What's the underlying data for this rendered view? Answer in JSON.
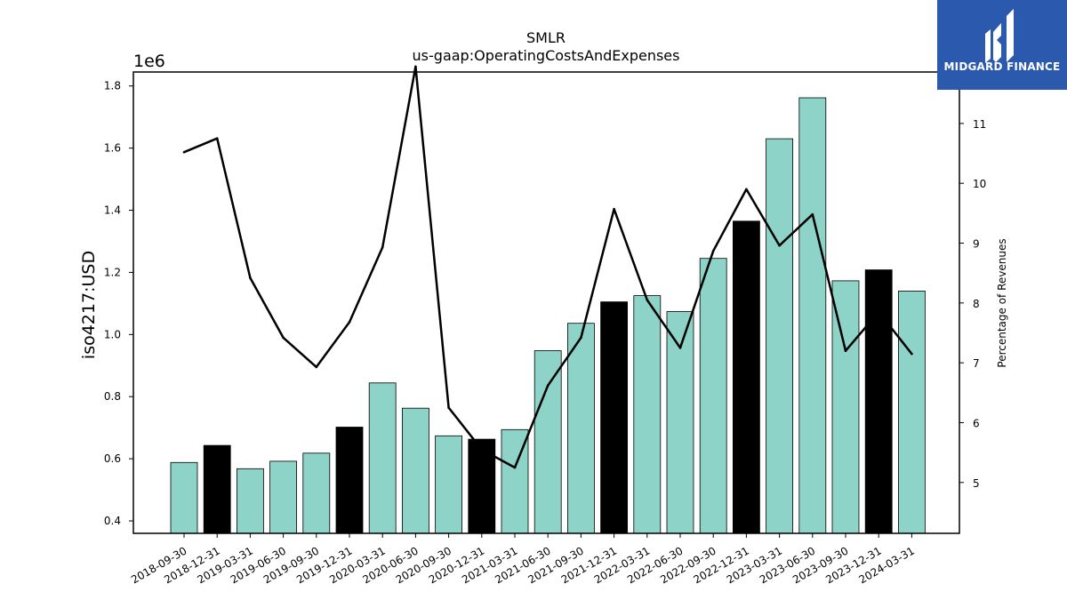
{
  "chart_data": {
    "type": "bar",
    "title": "SMLR",
    "subtitle": "us-gaap:OperatingCostsAndExpenses",
    "ylabel": "iso4217:USD",
    "y_offset_text": "1e6",
    "y2label": "Percentage of Revenues",
    "ylim": [
      0.36,
      1.845
    ],
    "y2lim": [
      4.15,
      11.86
    ],
    "yticks": [
      "0.4",
      "0.6",
      "0.8",
      "1.0",
      "1.2",
      "1.4",
      "1.6",
      "1.8"
    ],
    "y2ticks": [
      "5",
      "6",
      "7",
      "8",
      "9",
      "10",
      "11"
    ],
    "categories": [
      "2018-09-30",
      "2018-12-31",
      "2019-03-31",
      "2019-06-30",
      "2019-09-30",
      "2019-12-31",
      "2020-03-31",
      "2020-06-30",
      "2020-09-30",
      "2020-12-31",
      "2021-03-31",
      "2021-06-30",
      "2021-09-30",
      "2021-12-31",
      "2022-03-31",
      "2022-06-30",
      "2022-09-30",
      "2022-12-31",
      "2023-03-31",
      "2023-06-30",
      "2023-09-30",
      "2023-12-31",
      "2024-03-31"
    ],
    "series": [
      {
        "type": "bar",
        "axis": "left",
        "values": [
          0.588,
          0.643,
          0.568,
          0.592,
          0.618,
          0.702,
          0.844,
          0.763,
          0.674,
          0.663,
          0.694,
          0.948,
          1.036,
          1.105,
          1.125,
          1.074,
          1.245,
          1.365,
          1.63,
          1.762,
          1.173,
          1.208,
          1.14
        ],
        "quarter_end": [
          false,
          true,
          false,
          false,
          false,
          true,
          false,
          false,
          false,
          true,
          false,
          false,
          false,
          true,
          false,
          false,
          false,
          true,
          false,
          false,
          false,
          true,
          false
        ]
      },
      {
        "type": "line",
        "axis": "right",
        "values": [
          10.52,
          10.75,
          8.42,
          7.42,
          6.93,
          7.68,
          8.93,
          11.95,
          6.25,
          5.55,
          5.25,
          6.62,
          7.42,
          9.57,
          8.05,
          7.25,
          8.87,
          9.9,
          8.96,
          9.48,
          7.2,
          7.85,
          7.15
        ]
      }
    ],
    "colors": {
      "bar": "#8dd3c7",
      "bar_highlight": "#000000",
      "line": "#000000"
    }
  },
  "logo": {
    "text": "MIDGARD FINANCE",
    "colors": {
      "background": "#2a59ad",
      "mark": "#ffffff"
    }
  }
}
